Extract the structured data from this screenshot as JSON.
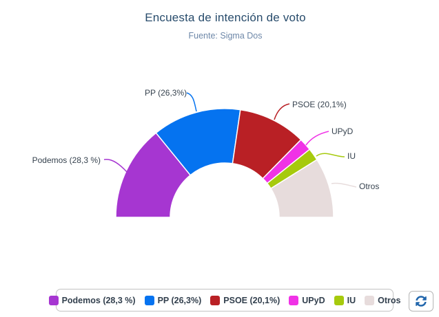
{
  "header": {
    "title": "Encuesta de intención de voto",
    "subtitle": "Fuente: Sigma Dos"
  },
  "chart_data": {
    "type": "pie",
    "variant": "semi-circle-donut",
    "title": "Encuesta de intención de voto",
    "subtitle": "Fuente: Sigma Dos",
    "start_angle_deg": 180,
    "end_angle_deg": 0,
    "inner_radius_pct": 50,
    "legend_position": "bottom",
    "series": [
      {
        "name": "Podemos",
        "value": 28.3,
        "label": "Podemos (28,3 %)",
        "color": "#a636d1"
      },
      {
        "name": "PP",
        "value": 26.3,
        "label": "PP (26,3%)",
        "color": "#0573f0"
      },
      {
        "name": "PSOE",
        "value": 20.1,
        "label": "PSOE (20,1%)",
        "color": "#b92025"
      },
      {
        "name": "UPyD",
        "value": 3.8,
        "label": "UPyD",
        "color": "#f032e6"
      },
      {
        "name": "IU",
        "value": 3.7,
        "label": "IU",
        "color": "#a6ca0d"
      },
      {
        "name": "Otros",
        "value": 17.8,
        "label": "Otros",
        "color": "#e7dcdc"
      }
    ]
  },
  "toolbar": {
    "refresh_icon": "arrows-cycle-refresh",
    "refresh_color": "#2166ac"
  }
}
